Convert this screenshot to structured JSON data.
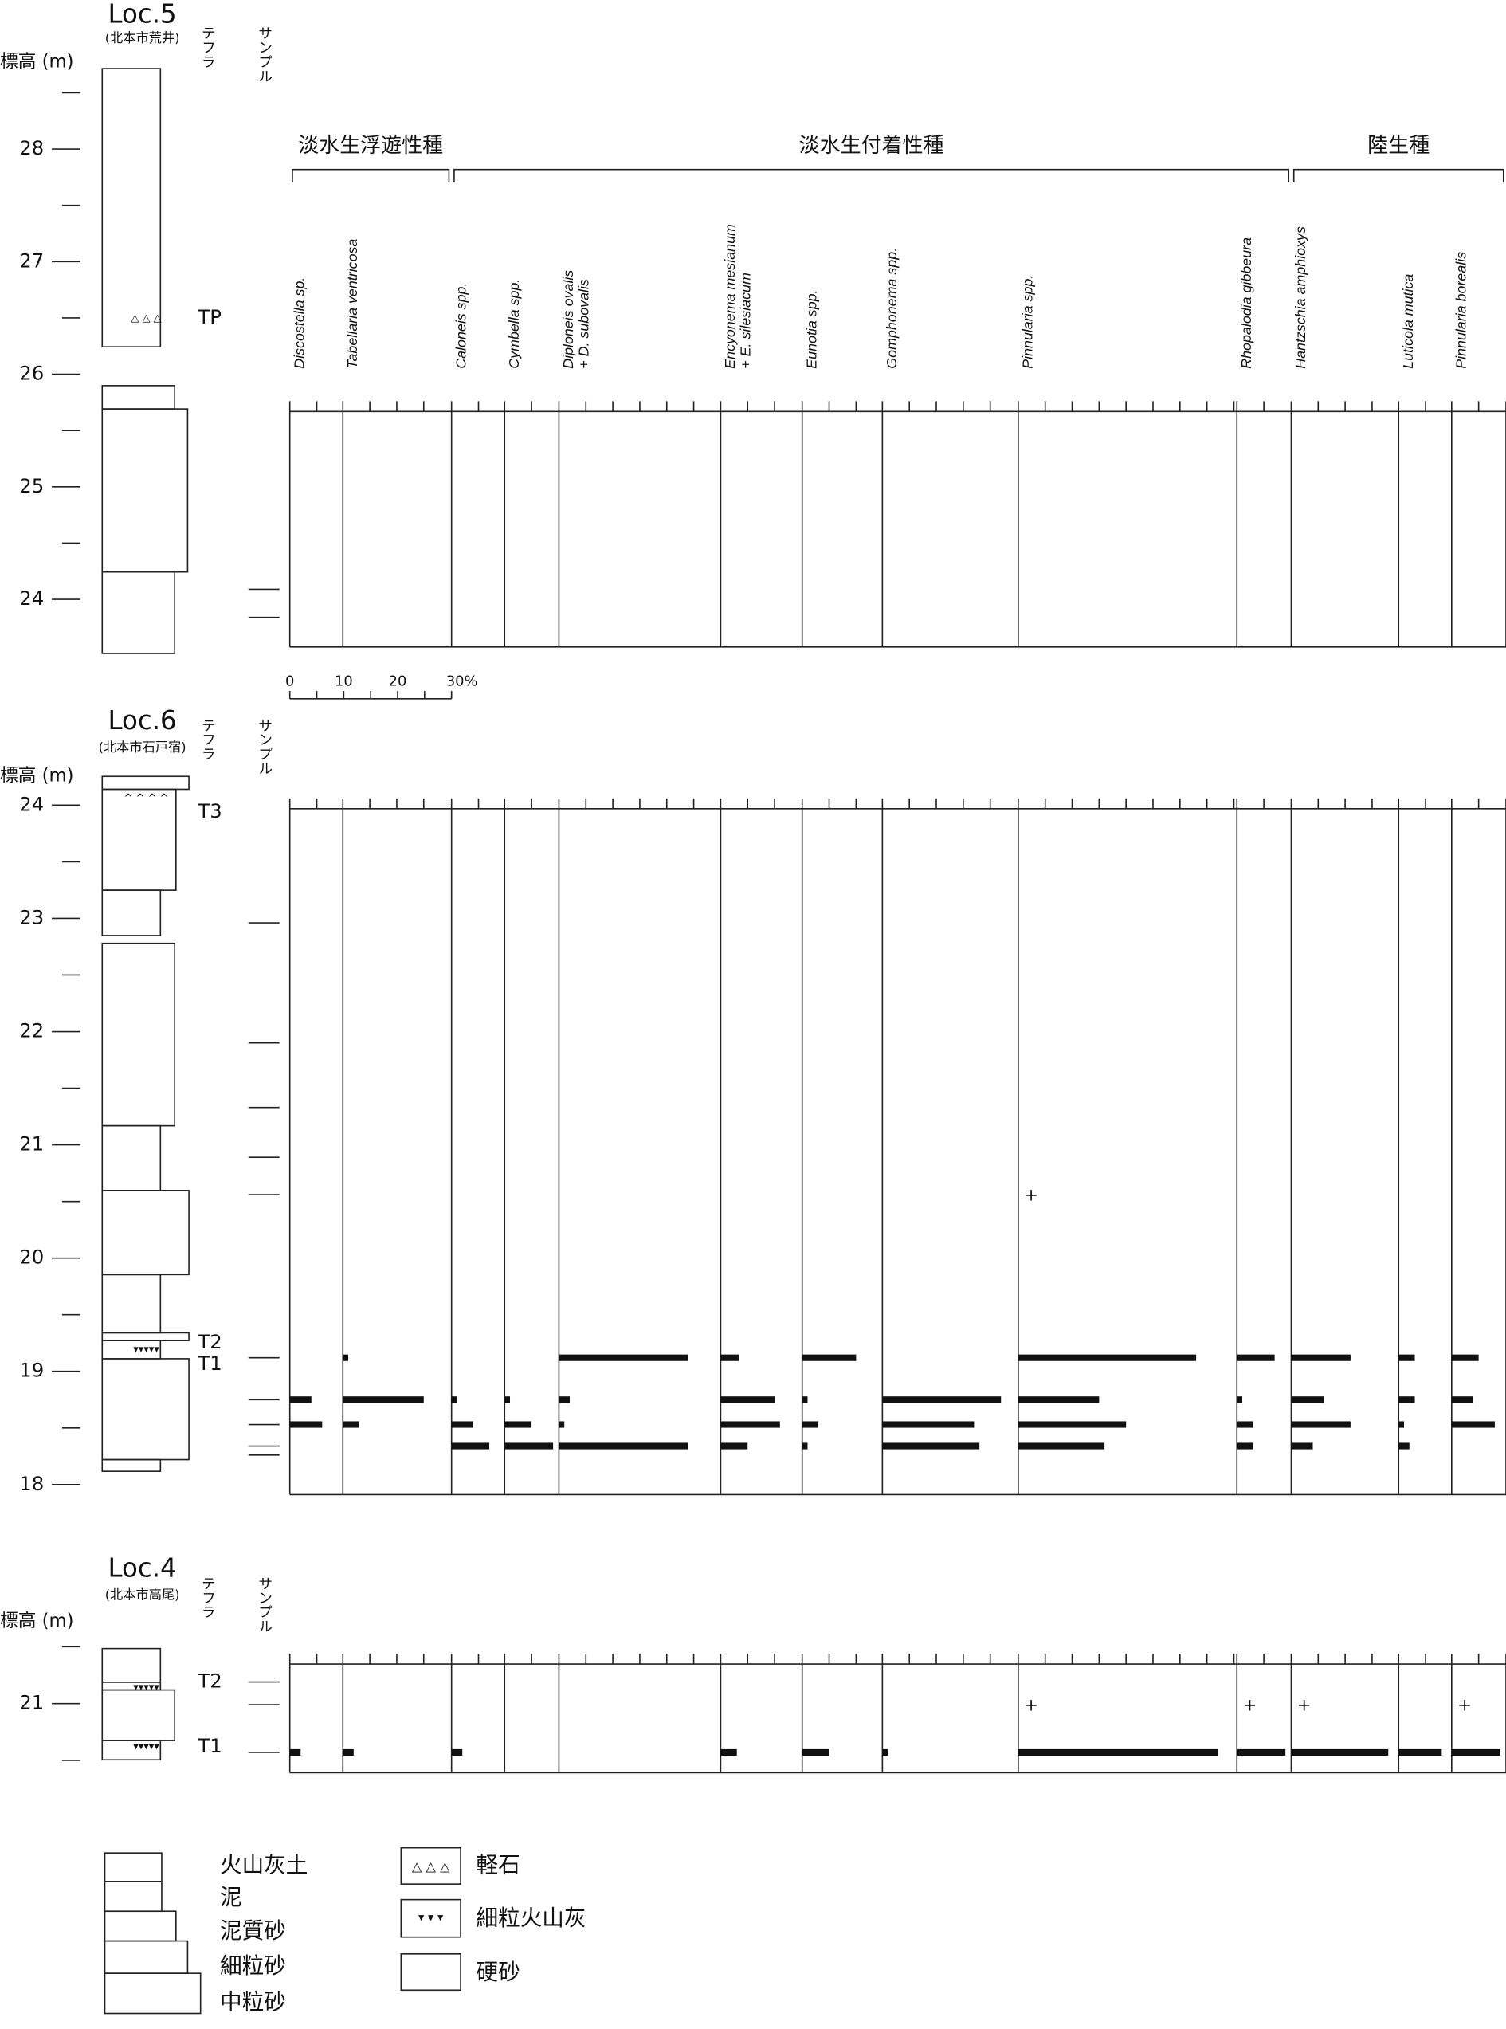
{
  "groups": [
    {
      "label": "淡水生浮遊性種",
      "taxa": [
        [
          "Discostella sp."
        ],
        [
          "Tabellaria ventricosa"
        ]
      ]
    },
    {
      "label": "淡水生付着性種",
      "taxa": [
        [
          "Caloneis spp."
        ],
        [
          "Cymbella spp."
        ],
        [
          "Diploneis ovalis",
          "+ D. subovalis"
        ],
        [
          "Encyonema mesianum",
          "+ E. silesiacum"
        ],
        [
          "Eunotia spp."
        ],
        [
          "Gomphonema spp."
        ],
        [
          "Pinnularia spp."
        ],
        [
          "Rhopalodia gibbeura"
        ]
      ]
    },
    {
      "label": "陸生種",
      "taxa": [
        [
          "Hantzschia amphioxys"
        ],
        [
          "Luticola mutica"
        ],
        [
          "Pinnularia borealis"
        ]
      ]
    }
  ],
  "scale": {
    "ticks": [
      0,
      10,
      20,
      {
        "value": 30,
        "label": "30%"
      }
    ]
  },
  "sections": [
    {
      "name": "Loc.5",
      "place": "(北本市荒井)",
      "axis_label": "標高 (m)",
      "tephra_header": "テフラ",
      "sample_header": "サンプル",
      "ylim": [
        23.6,
        28.6
      ],
      "yticks": [
        24,
        25,
        26,
        27,
        28
      ],
      "tephra": [
        {
          "label": "TP",
          "elevation": 26.5
        }
      ],
      "samples": [
        {
          "elevation": 24.09
        },
        {
          "elevation": 23.84
        }
      ]
    },
    {
      "name": "Loc.6",
      "place": "(北本市石戸宿)",
      "axis_label": "標高 (m)",
      "tephra_header": "テフラ",
      "sample_header": "サンプル",
      "ylim": [
        17.9,
        24.3
      ],
      "yticks": [
        18,
        19,
        20,
        21,
        22,
        23,
        24
      ],
      "tephra": [
        {
          "label": "T3",
          "elevation": 23.94
        },
        {
          "label": "T2",
          "elevation": 19.25
        },
        {
          "label": "T1",
          "elevation": 19.06
        }
      ],
      "samples": [
        {
          "elevation": 22.96
        },
        {
          "elevation": 21.9
        },
        {
          "elevation": 21.33
        },
        {
          "elevation": 20.89
        },
        {
          "elevation": 20.56,
          "values": [
            null,
            null,
            null,
            null,
            null,
            null,
            null,
            null,
            "+",
            null,
            null,
            null,
            null
          ]
        },
        {
          "elevation": 19.12,
          "values": [
            0,
            1,
            0,
            0,
            24,
            3.4,
            10,
            0,
            33,
            7,
            11,
            3,
            5
          ]
        },
        {
          "elevation": 18.75,
          "values": [
            4,
            15,
            1,
            1,
            2,
            10,
            1,
            22,
            15,
            1,
            6,
            3,
            4
          ]
        },
        {
          "elevation": 18.53,
          "values": [
            6,
            3,
            4,
            5,
            1,
            11,
            3,
            17,
            20,
            3,
            11,
            1,
            8
          ]
        },
        {
          "elevation": 18.34,
          "values": [
            0,
            0,
            7,
            9,
            24,
            5,
            1,
            18,
            16,
            3,
            4,
            2,
            0
          ]
        },
        {
          "elevation": 18.26
        }
      ]
    },
    {
      "name": "Loc.4",
      "place": "(北本市高尾)",
      "axis_label": "標高 (m)",
      "tephra_header": "テフラ",
      "sample_header": "サンプル",
      "ylim": [
        20.3,
        21.7
      ],
      "yticks": [
        21
      ],
      "tephra": [
        {
          "label": "T2",
          "elevation": 21.19
        },
        {
          "label": "T1",
          "elevation": 20.62
        }
      ],
      "samples": [
        {
          "elevation": 21.19
        },
        {
          "elevation": 20.99,
          "values": [
            null,
            null,
            null,
            null,
            null,
            null,
            null,
            null,
            "+",
            "+",
            "+",
            null,
            "+"
          ]
        },
        {
          "elevation": 20.57,
          "values": [
            2,
            2,
            2,
            0,
            0,
            3,
            5,
            1,
            37,
            9,
            18,
            8,
            9
          ]
        }
      ]
    }
  ],
  "legend": {
    "lithology": [
      "火山灰土",
      "泥",
      "泥質砂",
      "細粒砂",
      "中粒砂"
    ],
    "symbols": [
      "軽石",
      "細粒火山灰",
      "硬砂"
    ]
  }
}
